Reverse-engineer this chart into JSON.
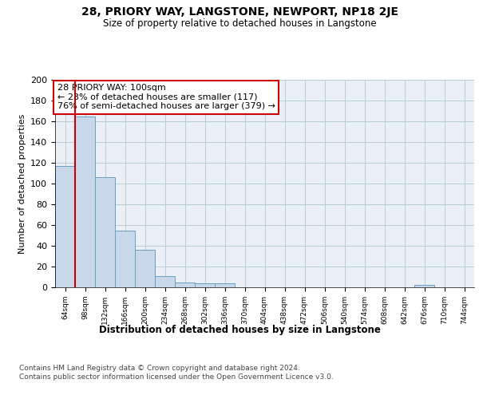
{
  "title": "28, PRIORY WAY, LANGSTONE, NEWPORT, NP18 2JE",
  "subtitle": "Size of property relative to detached houses in Langstone",
  "xlabel": "Distribution of detached houses by size in Langstone",
  "ylabel": "Number of detached properties",
  "bin_labels": [
    "64sqm",
    "98sqm",
    "132sqm",
    "166sqm",
    "200sqm",
    "234sqm",
    "268sqm",
    "302sqm",
    "336sqm",
    "370sqm",
    "404sqm",
    "438sqm",
    "472sqm",
    "506sqm",
    "540sqm",
    "574sqm",
    "608sqm",
    "642sqm",
    "676sqm",
    "710sqm",
    "744sqm"
  ],
  "bar_heights": [
    117,
    165,
    106,
    55,
    36,
    11,
    5,
    4,
    4,
    0,
    0,
    0,
    0,
    0,
    0,
    0,
    0,
    0,
    2,
    0,
    0
  ],
  "bar_color": "#c8d8ea",
  "bar_edge_color": "#6a9fc0",
  "vline_x": 0.5,
  "vline_color": "#cc0000",
  "annotation_text": "28 PRIORY WAY: 100sqm\n← 23% of detached houses are smaller (117)\n76% of semi-detached houses are larger (379) →",
  "annotation_box_color": "white",
  "annotation_box_edge": "#cc0000",
  "ylim": [
    0,
    200
  ],
  "yticks": [
    0,
    20,
    40,
    60,
    80,
    100,
    120,
    140,
    160,
    180,
    200
  ],
  "footer": "Contains HM Land Registry data © Crown copyright and database right 2024.\nContains public sector information licensed under the Open Government Licence v3.0.",
  "bg_color": "#eaf0f6",
  "grid_color": "#b8cdd8",
  "fig_bg": "#ffffff"
}
